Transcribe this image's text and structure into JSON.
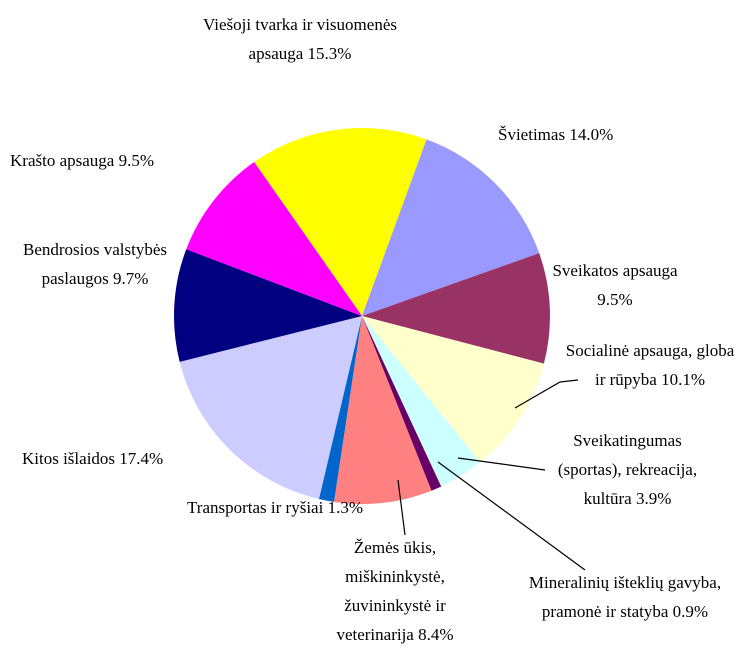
{
  "chart_data": {
    "type": "pie",
    "categories": [
      "Viešoji tvarka ir visuomenės apsauga",
      "Švietimas",
      "Sveikatos apsauga",
      "Socialinė apsauga, globa ir rūpyba",
      "Sveikatingumas (sportas), rekreacija, kultūra",
      "Mineralinių išteklių gavyba, pramonė ir statyba",
      "Žemės ūkis, miškininkystė, žuvininkystė ir veterinarija",
      "Transportas ir ryšiai",
      "Kitos išlaidos",
      "Bendrosios valstybės paslaugos",
      "Krašto apsauga"
    ],
    "values": [
      15.3,
      14.0,
      9.5,
      10.1,
      3.9,
      0.9,
      8.4,
      1.3,
      17.4,
      9.7,
      9.5
    ],
    "value_labels": [
      "15.3%",
      "14.0%",
      "9.5%",
      "10.1%",
      "3.9%",
      "0.9%",
      "8.4%",
      "1.3%",
      "17.4%",
      "9.7%",
      "9.5%"
    ],
    "colors": [
      "#ffff00",
      "#9999ff",
      "#993366",
      "#ffffcc",
      "#ccffff",
      "#660066",
      "#ff8080",
      "#0066cc",
      "#ccccff",
      "#000080",
      "#ff00ff"
    ]
  }
}
